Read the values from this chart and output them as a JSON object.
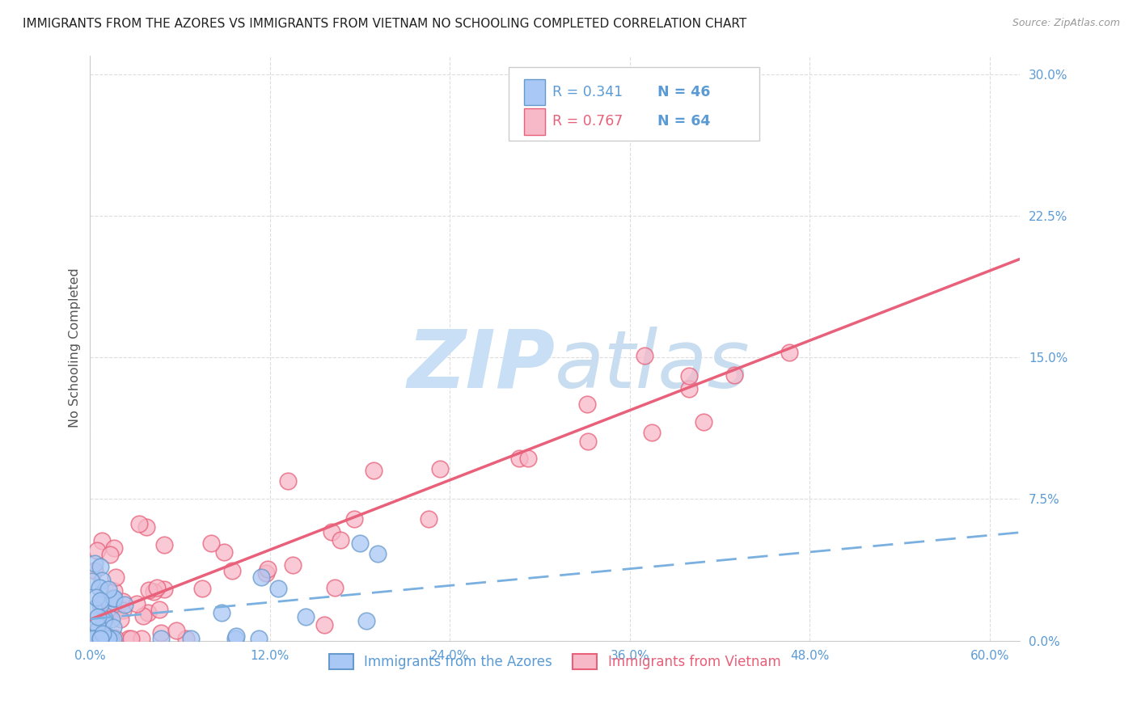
{
  "title": "IMMIGRANTS FROM THE AZORES VS IMMIGRANTS FROM VIETNAM NO SCHOOLING COMPLETED CORRELATION CHART",
  "source": "Source: ZipAtlas.com",
  "ylabel": "No Schooling Completed",
  "yticks": [
    "0.0%",
    "7.5%",
    "15.0%",
    "22.5%",
    "30.0%"
  ],
  "ytick_vals": [
    0.0,
    0.075,
    0.15,
    0.225,
    0.3
  ],
  "xtick_vals": [
    0.0,
    0.12,
    0.24,
    0.36,
    0.48,
    0.6
  ],
  "xtick_labels": [
    "0.0%",
    "12.0%",
    "24.0%",
    "36.0%",
    "48.0%",
    "60.0%"
  ],
  "xlim": [
    0.0,
    0.62
  ],
  "ylim": [
    0.0,
    0.31
  ],
  "legend1_r": "0.341",
  "legend1_n": "46",
  "legend2_r": "0.767",
  "legend2_n": "64",
  "azores_face_color": "#aac8f5",
  "azores_edge_color": "#6699cc",
  "vietnam_face_color": "#f7b8c8",
  "vietnam_edge_color": "#e8607a",
  "azores_line_color": "#7ab0e0",
  "vietnam_line_color": "#e8607a",
  "tick_label_color": "#5b9bd5",
  "watermark_zip_color": "#c8dff5",
  "watermark_atlas_color": "#c8ddf0",
  "background_color": "#ffffff",
  "grid_color": "#dddddd",
  "legend_r_color": "#5b9bd5",
  "legend_n_color": "#5b9bd5",
  "legend2_r_color": "#e8607a",
  "legend2_n_color": "#5b9bd5"
}
